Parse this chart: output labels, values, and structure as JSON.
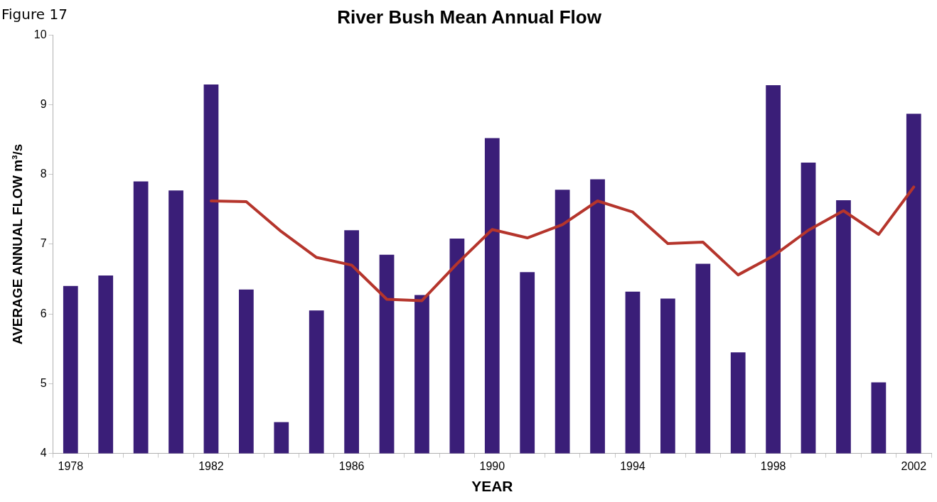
{
  "chart_data": {
    "type": "bar",
    "title": "River Bush Mean Annual Flow",
    "xlabel": "YEAR",
    "ylabel": "AVERAGE ANNUAL FLOW m³/s",
    "annotations": [
      "Figure 17"
    ],
    "categories": [
      "1978",
      null,
      null,
      null,
      "1982",
      null,
      null,
      null,
      "1986",
      null,
      null,
      null,
      "1990",
      null,
      null,
      null,
      "1994",
      null,
      null,
      null,
      "1998",
      null,
      null,
      null,
      "2002"
    ],
    "series": [
      {
        "color": "#3a1e78",
        "values": [
          6.4,
          6.55,
          7.9,
          7.77,
          9.29,
          6.35,
          4.45,
          6.05,
          7.2,
          6.85,
          6.27,
          7.08,
          8.52,
          6.6,
          7.78,
          7.93,
          6.32,
          6.22,
          6.72,
          5.45,
          9.28,
          8.17,
          7.63,
          5.02,
          8.87
        ]
      },
      {
        "type": "line",
        "color": "#b5352c",
        "values": [
          null,
          null,
          null,
          null,
          7.62,
          7.61,
          7.18,
          6.81,
          6.7,
          6.21,
          6.19,
          6.72,
          7.21,
          7.09,
          7.28,
          7.62,
          7.46,
          7.01,
          7.03,
          6.56,
          6.83,
          7.2,
          7.48,
          7.14,
          7.82
        ]
      }
    ],
    "ylim": [
      4,
      10
    ],
    "yticks": [
      4,
      5,
      6,
      7,
      8,
      9,
      10
    ],
    "grid": false,
    "legend": false,
    "marker": "none",
    "line_style": "solid"
  }
}
